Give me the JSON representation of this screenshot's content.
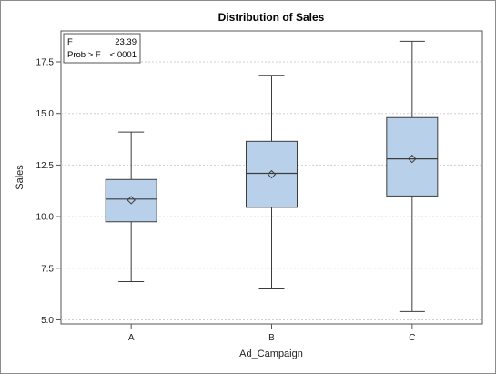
{
  "chart_data": {
    "type": "box",
    "title": "Distribution of Sales",
    "xlabel": "Ad_Campaign",
    "ylabel": "Sales",
    "ylim": [
      4.8,
      19.0
    ],
    "yticks": [
      "5.0",
      "7.5",
      "10.0",
      "12.5",
      "15.0",
      "17.5"
    ],
    "grid": "horizontal dotted",
    "categories": [
      "A",
      "B",
      "C"
    ],
    "boxes": [
      {
        "category": "A",
        "min": 6.85,
        "q1": 9.75,
        "median": 10.85,
        "q3": 11.8,
        "max": 14.1,
        "mean": 10.8
      },
      {
        "category": "B",
        "min": 6.5,
        "q1": 10.45,
        "median": 12.1,
        "q3": 13.65,
        "max": 16.85,
        "mean": 12.05
      },
      {
        "category": "C",
        "min": 5.4,
        "q1": 11.0,
        "median": 12.8,
        "q3": 14.8,
        "max": 18.5,
        "mean": 12.8
      }
    ],
    "stats": {
      "f_label": "F",
      "f_value": "23.39",
      "p_label": "Prob > F",
      "p_value": "<.0001"
    },
    "colors": {
      "box_fill": "#b9d0ea",
      "box_stroke": "#3c3c3c",
      "whisker": "#3c3c3c",
      "grid": "#cfcfcf"
    }
  }
}
